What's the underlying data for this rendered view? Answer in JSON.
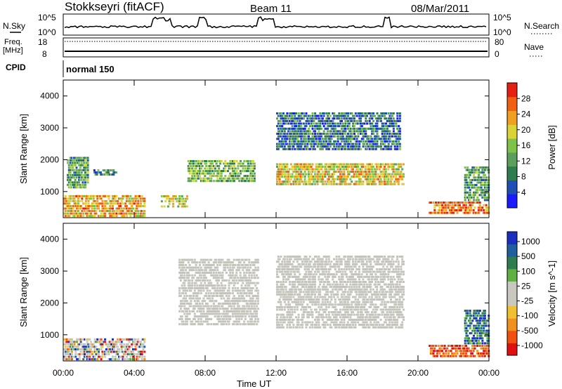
{
  "header": {
    "station": "Stokkseyri (fitACF)",
    "beam": "Beam 11",
    "date": "08/Mar/2011"
  },
  "top_panels": {
    "nsky_label": "N.Sky",
    "nsky_ticks": [
      "10^5",
      "10^0"
    ],
    "nsearch_label": "N.Search",
    "nsearch_ticks": [
      "10^5",
      "10^0"
    ],
    "freq_label": "Freq.",
    "freq_unit": "[MHz]",
    "freq_ticks": [
      "18",
      "8"
    ],
    "nave_label": "Nave",
    "nave_ticks": [
      "80",
      "0"
    ],
    "cpid_label": "CPID",
    "cpid_value": "normal 150"
  },
  "colors": {
    "power_scale": [
      "#1a1aff",
      "#1f4fb5",
      "#2e7d4f",
      "#5aa05a",
      "#7fc24a",
      "#d9d433",
      "#f0a020",
      "#f06010",
      "#e62010"
    ],
    "velocity_scale": [
      "#e01010",
      "#f05010",
      "#f09020",
      "#f0c030",
      "#c8c8c0",
      "#c8c8c0",
      "#5fb040",
      "#2e7d4f",
      "#1f5fa0",
      "#1a2fc0"
    ],
    "ground_scatter": "#c4c4bc"
  },
  "chart_data": [
    {
      "type": "heatmap",
      "name": "power",
      "ylabel": "Slant Range [km]",
      "y_ticks": [
        "1000",
        "2000",
        "3000",
        "4000"
      ],
      "ylim": [
        180,
        4500
      ],
      "xlim": [
        0,
        24
      ],
      "colorbar_label": "Power [dB]",
      "colorbar_ticks": [
        "4",
        "8",
        "12",
        "16",
        "20",
        "24",
        "28"
      ],
      "colorbar_range": [
        0,
        32
      ],
      "regions": [
        {
          "t0": 0.0,
          "t1": 4.6,
          "r0": 200,
          "r1": 900,
          "level": 22
        },
        {
          "t0": 0.2,
          "t1": 1.4,
          "r0": 1100,
          "r1": 2100,
          "level": 12
        },
        {
          "t0": 1.7,
          "t1": 3.0,
          "r0": 1500,
          "r1": 1700,
          "level": 10
        },
        {
          "t0": 5.5,
          "t1": 7.0,
          "r0": 500,
          "r1": 900,
          "level": 18
        },
        {
          "t0": 7.0,
          "t1": 10.8,
          "r0": 1300,
          "r1": 2000,
          "level": 14
        },
        {
          "t0": 12.0,
          "t1": 19.2,
          "r0": 1200,
          "r1": 1900,
          "level": 20
        },
        {
          "t0": 12.0,
          "t1": 19.0,
          "r0": 2300,
          "r1": 3500,
          "level": 8
        },
        {
          "t0": 20.6,
          "t1": 24.0,
          "r0": 300,
          "r1": 700,
          "level": 26
        },
        {
          "t0": 22.6,
          "t1": 24.0,
          "r0": 700,
          "r1": 1800,
          "level": 12
        }
      ]
    },
    {
      "type": "heatmap",
      "name": "velocity",
      "ylabel": "Slant Range [km]",
      "y_ticks": [
        "1000",
        "2000",
        "3000",
        "4000"
      ],
      "ylim": [
        180,
        4500
      ],
      "xlim": [
        0,
        24
      ],
      "xlabel": "Time UT",
      "x_ticks": [
        "00:00",
        "04:00",
        "08:00",
        "12:00",
        "16:00",
        "20:00",
        "00:00"
      ],
      "colorbar_label": "Velocity [m s^-1]",
      "colorbar_ticks": [
        "1000",
        "500",
        "100",
        "25",
        "-25",
        "-100",
        "-500",
        "-1000"
      ],
      "regions": [
        {
          "t0": 0.0,
          "t1": 4.6,
          "r0": 200,
          "r1": 900,
          "kind": "mixed"
        },
        {
          "t0": 6.5,
          "t1": 11.0,
          "r0": 1300,
          "r1": 3400,
          "kind": "ground"
        },
        {
          "t0": 12.0,
          "t1": 19.2,
          "r0": 1200,
          "r1": 3500,
          "kind": "ground"
        },
        {
          "t0": 20.6,
          "t1": 24.0,
          "r0": 300,
          "r1": 700,
          "kind": "negative"
        },
        {
          "t0": 22.6,
          "t1": 24.0,
          "r0": 700,
          "r1": 1800,
          "kind": "positive"
        }
      ]
    }
  ]
}
